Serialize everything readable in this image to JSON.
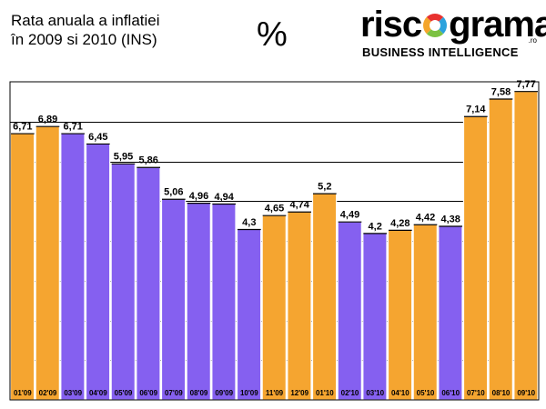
{
  "header": {
    "title_line1": "Rata anuala a inflatiei",
    "title_line2": "în 2009 si 2010 (INS)",
    "unit_symbol": "%"
  },
  "logo": {
    "word_start": "risc",
    "word_end": "grama",
    "domain_suffix": ".ro",
    "tagline": "BUSINESS INTELLIGENCE",
    "ring_colors": [
      "#e8312f",
      "#2ba2dd",
      "#7cc242",
      "#f4a52b"
    ]
  },
  "chart_data": {
    "type": "bar",
    "title": "Rata anuala a inflatiei în 2009 si 2010 (INS)",
    "xlabel": "",
    "ylabel": "%",
    "ylim": [
      0,
      8
    ],
    "grid": true,
    "categories": [
      "01'09",
      "02'09",
      "03'09",
      "04'09",
      "05'09",
      "06'09",
      "07'09",
      "08'09",
      "09'09",
      "10'09",
      "11'09",
      "12'09",
      "01'10",
      "02'10",
      "03'10",
      "04'10",
      "05'10",
      "06'10",
      "07'10",
      "08'10",
      "09'10"
    ],
    "values": [
      6.71,
      6.89,
      6.71,
      6.45,
      5.95,
      5.86,
      5.06,
      4.96,
      4.94,
      4.3,
      4.65,
      4.74,
      5.2,
      4.49,
      4.2,
      4.28,
      4.42,
      4.38,
      7.14,
      7.58,
      7.77
    ],
    "value_labels": [
      "6,71",
      "6,89",
      "6,71",
      "6,45",
      "5,95",
      "5,86",
      "5,06",
      "4,96",
      "4,94",
      "4,3",
      "4,65",
      "4,74",
      "5,2",
      "4,49",
      "4,2",
      "4,28",
      "4,42",
      "4,38",
      "7,14",
      "7,58",
      "7,77"
    ],
    "bar_colors": [
      "#f5a530",
      "#f5a530",
      "#8560f0",
      "#8560f0",
      "#8560f0",
      "#8560f0",
      "#8560f0",
      "#8560f0",
      "#8560f0",
      "#8560f0",
      "#f5a530",
      "#f5a530",
      "#f5a530",
      "#8560f0",
      "#8560f0",
      "#f5a530",
      "#f5a530",
      "#8560f0",
      "#f5a530",
      "#f5a530",
      "#f5a530"
    ],
    "colors": {
      "increase": "#f5a530",
      "decrease": "#8560f0",
      "grid": "#000000"
    }
  }
}
